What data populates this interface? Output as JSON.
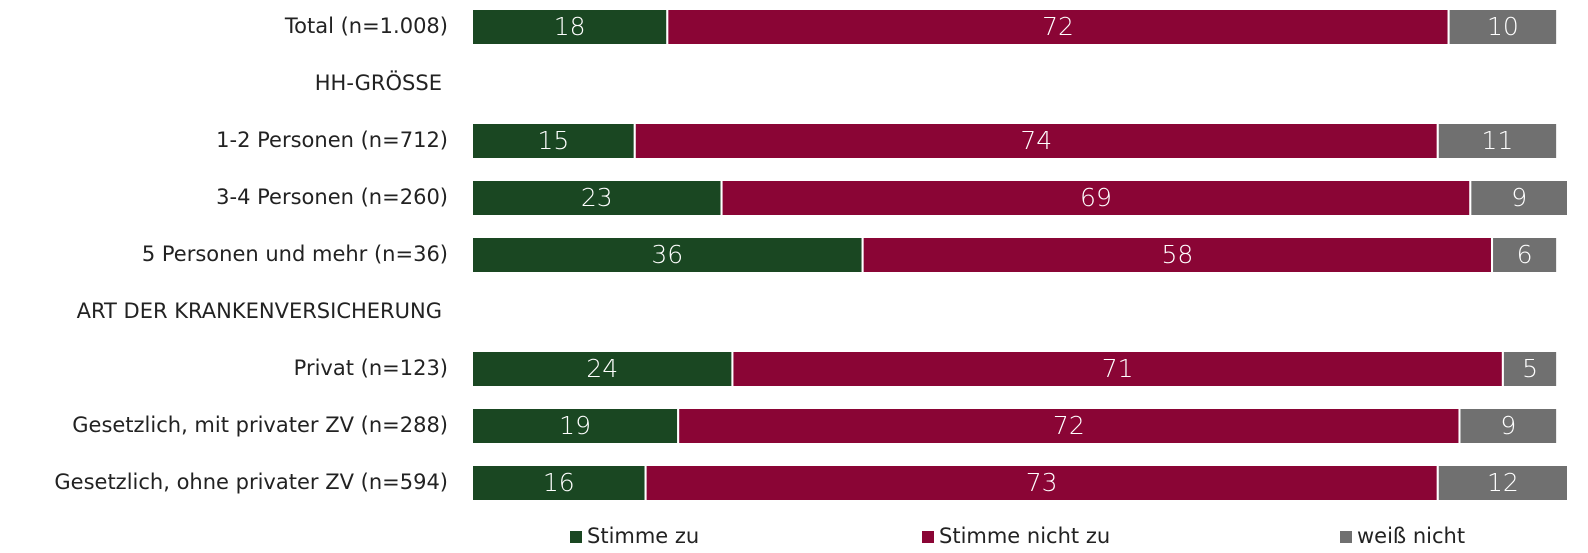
{
  "chart_data": {
    "type": "stacked-bar-horizontal",
    "categories": [
      "Total (n=1.008)",
      "HH-GRÖSSE",
      "1-2 Personen (n=712)",
      "3-4 Personen (n=260)",
      "5 Personen und mehr (n=36)",
      "ART DER KRANKENVERSICHERUNG",
      "Privat (n=123)",
      "Gesetzlich, mit privater ZV (n=288)",
      "Gesetzlich, ohne privater ZV (n=594)"
    ],
    "series": [
      {
        "name": "Stimme zu",
        "color": "#1a4722",
        "values": [
          18,
          null,
          15,
          23,
          36,
          null,
          24,
          19,
          16
        ]
      },
      {
        "name": "Stimme nicht zu",
        "color": "#8a0535",
        "values": [
          72,
          null,
          74,
          69,
          58,
          null,
          71,
          72,
          73
        ]
      },
      {
        "name": "weiß nicht",
        "color": "#707070",
        "values": [
          10,
          null,
          11,
          9,
          6,
          null,
          5,
          9,
          12
        ]
      }
    ],
    "xlim": [
      0,
      101
    ],
    "legend": "bottom"
  }
}
